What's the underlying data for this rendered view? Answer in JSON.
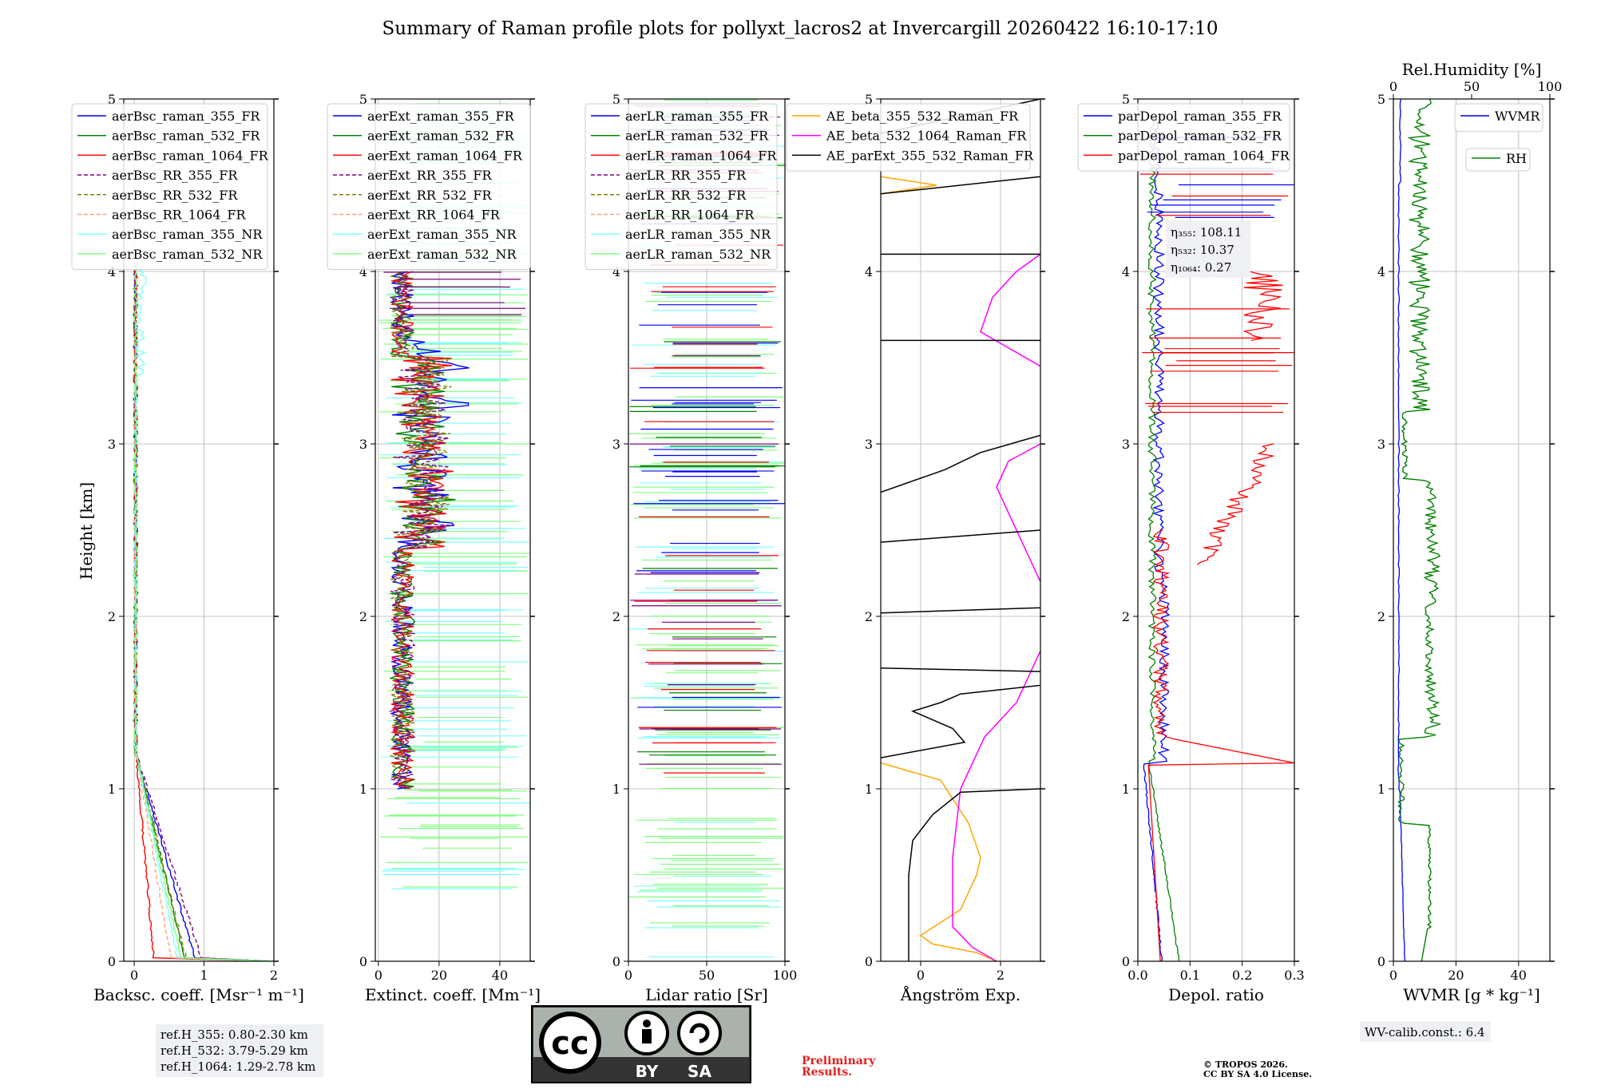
{
  "title": "Summary of Raman profile plots for pollyxt_lacros2 at Invercargill 20260422 16:10-17:10",
  "ylabel": "Height [km]",
  "yticks": [
    "0",
    "1",
    "2",
    "3",
    "4",
    "5"
  ],
  "colors": {
    "blue": "#0000ff",
    "green": "#008000",
    "red": "#ff0000",
    "purple": "#800080",
    "olive": "#808000",
    "salmon": "#ffa07a",
    "cyan": "#80ffff",
    "lightgreen": "#80ff80",
    "orange": "#ffa500",
    "magenta": "#ff00ff",
    "black": "#000000"
  },
  "chart_data": [
    {
      "type": "line",
      "id": "bsc",
      "xlabel": "Backsc. coeff. [Msr⁻¹ m⁻¹]",
      "xlim": [
        -0.15,
        2.0
      ],
      "xticks": [
        "0",
        "1",
        "2"
      ],
      "ylim": [
        0,
        5
      ],
      "legend": [
        "aerBsc_raman_355_FR",
        "aerBsc_raman_532_FR",
        "aerBsc_raman_1064_FR",
        "aerBsc_RR_355_FR",
        "aerBsc_RR_532_FR",
        "aerBsc_RR_1064_FR",
        "aerBsc_raman_355_NR",
        "aerBsc_raman_532_NR"
      ]
    },
    {
      "type": "line",
      "id": "ext",
      "xlabel": "Extinct. coeff. [Mm⁻¹]",
      "xlim": [
        -1,
        50
      ],
      "xticks": [
        "0",
        "20",
        "40"
      ],
      "ylim": [
        0,
        5
      ],
      "legend": [
        "aerExt_raman_355_FR",
        "aerExt_raman_532_FR",
        "aerExt_raman_1064_FR",
        "aerExt_RR_355_FR",
        "aerExt_RR_532_FR",
        "aerExt_RR_1064_FR",
        "aerExt_raman_355_NR",
        "aerExt_raman_532_NR"
      ]
    },
    {
      "type": "line",
      "id": "lr",
      "xlabel": "Lidar ratio [Sr]",
      "xlim": [
        0,
        100
      ],
      "xticks": [
        "0",
        "50",
        "100"
      ],
      "ylim": [
        0,
        5
      ],
      "legend": [
        "aerLR_raman_355_FR",
        "aerLR_raman_532_FR",
        "aerLR_raman_1064_FR",
        "aerLR_RR_355_FR",
        "aerLR_RR_532_FR",
        "aerLR_RR_1064_FR",
        "aerLR_raman_355_NR",
        "aerLR_raman_532_NR"
      ]
    },
    {
      "type": "line",
      "id": "ae",
      "xlabel": "Ångström Exp.",
      "xlim": [
        -1,
        3
      ],
      "xticks": [
        "0",
        "2"
      ],
      "ylim": [
        0,
        5
      ],
      "legend": [
        "AE_beta_355_532_Raman_FR",
        "AE_beta_532_1064_Raman_FR",
        "AE_parExt_355_532_Raman_FR"
      ]
    },
    {
      "type": "line",
      "id": "dep",
      "xlabel": "Depol. ratio",
      "xlim": [
        0,
        0.3
      ],
      "xticks": [
        "0.0",
        "0.1",
        "0.2",
        "0.3"
      ],
      "ylim": [
        0,
        5
      ],
      "legend": [
        "parDepol_raman_355_FR",
        "parDepol_raman_532_FR",
        "parDepol_raman_1064_FR"
      ],
      "eta": [
        "η₃₅₅: 108.11",
        "η₅₃₂: 10.37",
        "η₁₀₆₄: 0.27"
      ]
    },
    {
      "type": "line",
      "id": "wv",
      "xlabel": "WVMR [g * kg⁻¹]",
      "xlim": [
        0,
        50
      ],
      "xticks": [
        "0",
        "20",
        "40"
      ],
      "ylim": [
        0,
        5
      ],
      "toplabel": "Rel.Humidity [%]",
      "topticks": [
        "0",
        "50",
        "100"
      ],
      "legend": [
        "WVMR"
      ],
      "legend2": [
        "RH"
      ]
    }
  ],
  "ref_heights": [
    "ref.H_355: 0.80-2.30 km",
    "ref.H_532: 3.79-5.29 km",
    "ref.H_1064: 1.29-2.78 km"
  ],
  "wv_calib": "WV-calib.const.: 6.4",
  "preliminary": [
    "Preliminary",
    "Results."
  ],
  "copyright": [
    "© TROPOS 2026.",
    "CC BY SA 4.0 License."
  ],
  "license_badge": {
    "cc": "cc",
    "by": "BY",
    "sa": "SA"
  }
}
